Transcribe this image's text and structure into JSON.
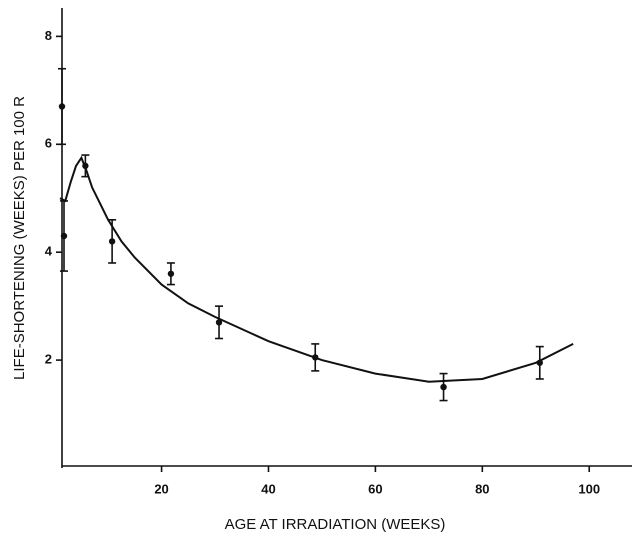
{
  "chart_data": {
    "type": "scatter",
    "xlabel": "AGE AT IRRADIATION (WEEKS)",
    "ylabel": "LIFE-SHORTENING (WEEKS) PER 100 R",
    "x": [
      1,
      1,
      5,
      10,
      21,
      30,
      48,
      72,
      90
    ],
    "values": [
      6.7,
      4.3,
      5.6,
      4.2,
      3.6,
      2.7,
      2.05,
      1.5,
      1.95
    ],
    "errors": [
      0.7,
      0.65,
      0.2,
      0.4,
      0.2,
      0.3,
      0.25,
      0.25,
      0.3
    ],
    "curve": {
      "x": [
        1,
        2,
        3,
        4,
        5,
        6,
        7,
        8.5,
        10,
        12.5,
        15,
        20,
        25,
        30,
        40,
        50,
        60,
        70,
        80,
        90,
        97
      ],
      "values": [
        5.0,
        4.95,
        5.3,
        5.6,
        5.75,
        5.5,
        5.2,
        4.9,
        4.6,
        4.2,
        3.9,
        3.4,
        3.05,
        2.8,
        2.35,
        2.0,
        1.75,
        1.6,
        1.65,
        1.95,
        2.3
      ]
    },
    "color": "#111111",
    "xlim": [
      1,
      108
    ],
    "xticks": [
      20,
      40,
      60,
      80,
      100
    ],
    "ylim": [
      0,
      8.6
    ],
    "yticks": [
      2,
      4,
      6,
      8
    ]
  }
}
